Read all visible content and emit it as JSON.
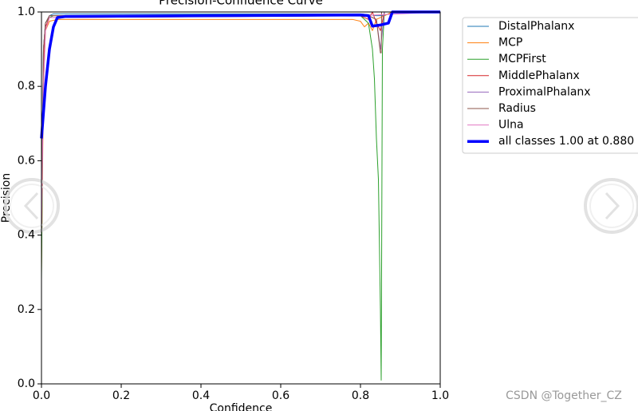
{
  "chart_data": {
    "type": "line",
    "title": "Precision-Confidence Curve",
    "x_label": "Confidence",
    "y_label": "Precision",
    "xlim": [
      0,
      1
    ],
    "ylim": [
      0,
      1
    ],
    "xticks": [
      {
        "value": 0,
        "label": "0.0"
      },
      {
        "value": 0.2,
        "label": "0.2"
      },
      {
        "value": 0.4,
        "label": "0.4"
      },
      {
        "value": 0.6,
        "label": "0.6"
      },
      {
        "value": 0.8,
        "label": "0.8"
      },
      {
        "value": 1,
        "label": "1.0"
      }
    ],
    "yticks": [
      {
        "value": 0,
        "label": "0.0"
      },
      {
        "value": 0.2,
        "label": "0.2"
      },
      {
        "value": 0.4,
        "label": "0.4"
      },
      {
        "value": 0.6,
        "label": "0.6"
      },
      {
        "value": 0.8,
        "label": "0.8"
      },
      {
        "value": 1,
        "label": "1.0"
      }
    ],
    "series": [
      {
        "name": "DistalPhalanx",
        "color": "#1f77b4",
        "width": 1,
        "x": [
          0,
          0.005,
          0.01,
          0.02,
          0.03,
          0.05,
          0.8,
          0.84,
          0.86,
          0.88,
          1
        ],
        "values": [
          0.45,
          0.9,
          0.97,
          0.99,
          0.995,
          0.995,
          0.995,
          0.99,
          0.99,
          1,
          1
        ]
      },
      {
        "name": "MCP",
        "color": "#ff7f0e",
        "width": 1,
        "x": [
          0,
          0.005,
          0.01,
          0.02,
          0.04,
          0.78,
          0.8,
          0.81,
          0.82,
          0.83,
          0.84,
          0.86,
          0.88,
          1
        ],
        "values": [
          0.3,
          0.8,
          0.95,
          0.975,
          0.98,
          0.98,
          0.975,
          0.96,
          0.97,
          0.95,
          0.98,
          0.99,
          1,
          1
        ]
      },
      {
        "name": "MCPFirst",
        "color": "#2ca02c",
        "width": 1,
        "x": [
          0,
          0.005,
          0.01,
          0.02,
          0.03,
          0.8,
          0.82,
          0.83,
          0.835,
          0.84,
          0.845,
          0.85,
          0.852,
          0.855,
          0.86,
          0.88,
          1
        ],
        "values": [
          0.28,
          0.9,
          0.97,
          0.985,
          0.99,
          0.99,
          0.97,
          0.9,
          0.82,
          0.66,
          0.55,
          0.2,
          0.01,
          0.9,
          1,
          1,
          1
        ]
      },
      {
        "name": "MiddlePhalanx",
        "color": "#d62728",
        "width": 1,
        "x": [
          0,
          0.005,
          0.01,
          0.02,
          0.8,
          0.82,
          0.83,
          0.84,
          0.85,
          0.86,
          1
        ],
        "values": [
          0.4,
          0.85,
          0.96,
          0.985,
          0.99,
          0.98,
          1,
          0.97,
          0.95,
          1,
          1
        ]
      },
      {
        "name": "ProximalPhalanx",
        "color": "#9467bd",
        "width": 1,
        "x": [
          0,
          0.005,
          0.01,
          0.02,
          0.82,
          0.84,
          0.85,
          0.86,
          1
        ],
        "values": [
          0.5,
          0.9,
          0.97,
          0.99,
          0.99,
          0.98,
          0.9,
          1,
          1
        ]
      },
      {
        "name": "Radius",
        "color": "#8c564b",
        "width": 1,
        "x": [
          0,
          0.005,
          0.01,
          0.02,
          0.82,
          0.84,
          0.85,
          0.852,
          0.853,
          1
        ],
        "values": [
          0.45,
          0.9,
          0.97,
          0.99,
          0.99,
          0.98,
          0.89,
          0.89,
          1,
          1
        ]
      },
      {
        "name": "Ulna",
        "color": "#e377c2",
        "width": 1,
        "x": [
          0,
          0.005,
          0.01,
          0.02,
          0.8,
          1
        ],
        "values": [
          0.4,
          0.8,
          0.95,
          0.985,
          0.99,
          1
        ]
      },
      {
        "name": "all classes 1.00 at 0.880",
        "color": "#0000ff",
        "width": 3.5,
        "x": [
          0,
          0.01,
          0.02,
          0.03,
          0.04,
          0.06,
          0.8,
          0.82,
          0.83,
          0.85,
          0.87,
          0.88,
          1
        ],
        "values": [
          0.66,
          0.8,
          0.9,
          0.96,
          0.985,
          0.988,
          0.992,
          0.99,
          0.962,
          0.965,
          0.97,
          1,
          1
        ]
      }
    ],
    "legend": "outside-right"
  },
  "watermark": "CSDN @Together_CZ"
}
